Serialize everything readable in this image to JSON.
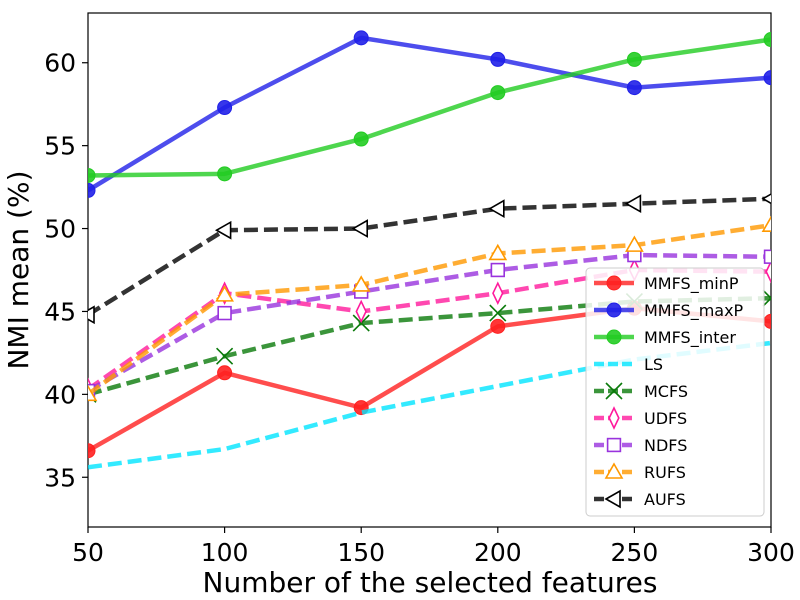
{
  "chart_data": {
    "type": "line",
    "title": "",
    "xlabel": "Number of the selected features",
    "ylabel": "NMI mean (%)",
    "x": [
      50,
      100,
      150,
      200,
      250,
      300
    ],
    "xlim": [
      50,
      300
    ],
    "ylim": [
      32,
      63
    ],
    "xticks": [
      "50",
      "100",
      "150",
      "200",
      "250",
      "300"
    ],
    "yticks": [
      "35",
      "40",
      "45",
      "50",
      "55",
      "60"
    ],
    "legend_position": "bottom-right",
    "series": [
      {
        "name": "MMFS_minP",
        "values": [
          36.6,
          41.3,
          39.2,
          44.1,
          45.2,
          44.4
        ],
        "color": "#ff2020",
        "marker": "circle",
        "dash": "solid",
        "fill": true
      },
      {
        "name": "MMFS_maxP",
        "values": [
          52.3,
          57.3,
          61.5,
          60.2,
          58.5,
          59.1
        ],
        "color": "#2020e8",
        "marker": "circle",
        "dash": "solid",
        "fill": true
      },
      {
        "name": "MMFS_inter",
        "values": [
          53.2,
          53.3,
          55.4,
          58.2,
          60.2,
          61.4
        ],
        "color": "#22cc22",
        "marker": "circle",
        "dash": "solid",
        "fill": true
      },
      {
        "name": "LS",
        "values": [
          35.6,
          36.7,
          38.9,
          40.5,
          42.1,
          43.1
        ],
        "color": "#00e5ff",
        "marker": "none",
        "dash": "dashed",
        "fill": false
      },
      {
        "name": "MCFS",
        "values": [
          40.0,
          42.3,
          44.3,
          44.9,
          45.6,
          45.8
        ],
        "color": "#0a7a0a",
        "marker": "x",
        "dash": "dashed",
        "fill": false
      },
      {
        "name": "UDFS",
        "values": [
          40.3,
          46.1,
          45.0,
          46.1,
          47.5,
          47.4
        ],
        "color": "#ff1a9c",
        "marker": "thin-diamond",
        "dash": "dashed",
        "fill": false
      },
      {
        "name": "NDFS",
        "values": [
          40.2,
          44.9,
          46.2,
          47.5,
          48.4,
          48.3
        ],
        "color": "#9933dd",
        "marker": "square",
        "dash": "dashed",
        "fill": false
      },
      {
        "name": "RUFS",
        "values": [
          40.0,
          46.0,
          46.6,
          48.5,
          49.0,
          50.2
        ],
        "color": "#ff9900",
        "marker": "triangle-up",
        "dash": "dashed",
        "fill": false
      },
      {
        "name": "AUFS",
        "values": [
          44.8,
          49.9,
          50.0,
          51.2,
          51.5,
          51.8
        ],
        "color": "#000000",
        "marker": "triangle-left",
        "dash": "dashed",
        "fill": false
      }
    ]
  }
}
